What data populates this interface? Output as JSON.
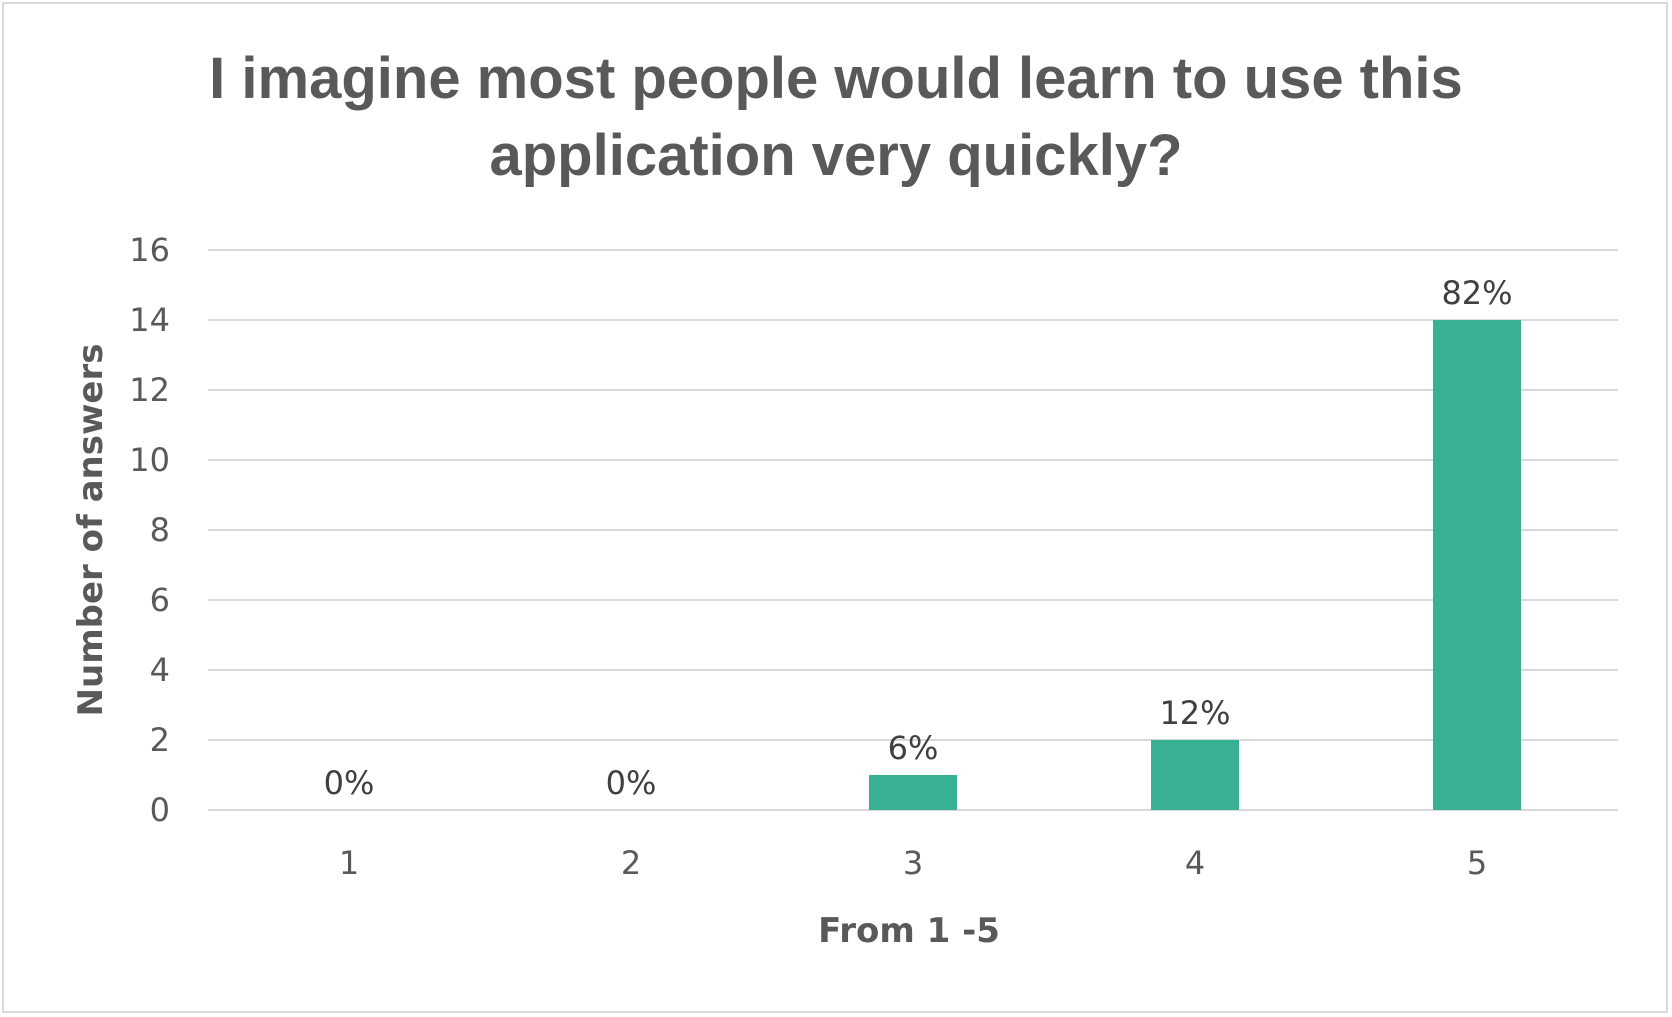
{
  "chart_data": {
    "type": "bar",
    "title_lines": [
      "I imagine most people would learn to use this",
      "application very quickly?"
    ],
    "xlabel": "From 1 -5",
    "ylabel": "Number of answers",
    "categories": [
      "1",
      "2",
      "3",
      "4",
      "5"
    ],
    "values": [
      0,
      0,
      1,
      2,
      14
    ],
    "data_labels": [
      "0%",
      "0%",
      "6%",
      "12%",
      "82%"
    ],
    "ylim": [
      0,
      16
    ],
    "yticks": [
      "0",
      "2",
      "4",
      "6",
      "8",
      "10",
      "12",
      "14",
      "16"
    ],
    "grid": true,
    "legend": "none",
    "bar_color": "#37b093"
  }
}
